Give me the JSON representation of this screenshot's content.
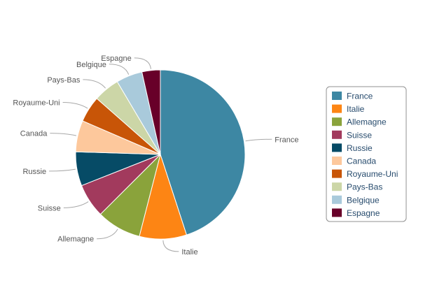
{
  "chart_data": {
    "type": "pie",
    "title": "",
    "categories": [
      "France",
      "Italie",
      "Allemagne",
      "Suisse",
      "Russie",
      "Canada",
      "Royaume-Uni",
      "Pays-Bas",
      "Belgique",
      "Espagne"
    ],
    "values": [
      45,
      9,
      8.5,
      6.5,
      6.5,
      6,
      5,
      5,
      5,
      3.5
    ],
    "unit": "%",
    "colors": [
      "#3d87a3",
      "#fd8514",
      "#8aa33b",
      "#a23a5d",
      "#064b66",
      "#fdc89c",
      "#c85507",
      "#ccd6a7",
      "#a9cadb",
      "#680029"
    ],
    "legend": {
      "position": "right",
      "items": [
        "France",
        "Italie",
        "Allemagne",
        "Suisse",
        "Russie",
        "Canada",
        "Royaume-Uni",
        "Pays-Bas",
        "Belgique",
        "Espagne"
      ]
    },
    "start_angle": "12 o'clock",
    "direction": "clockwise",
    "data_labels": "outside with connectors"
  }
}
